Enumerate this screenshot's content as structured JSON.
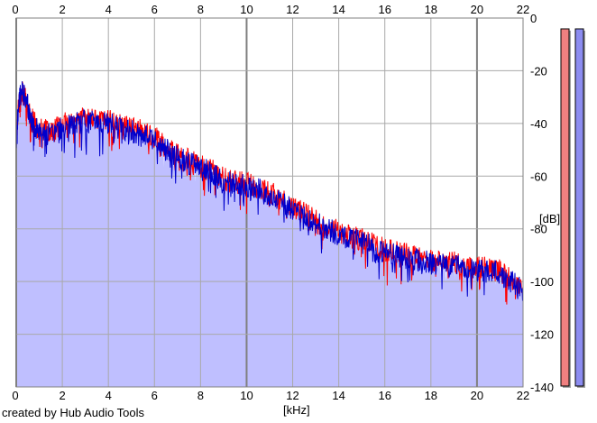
{
  "footer": {
    "credit": "created by Hub Audio Tools"
  },
  "chart_data": {
    "type": "area",
    "title": "",
    "xlabel": "[kHz]",
    "ylabel": "[dB]",
    "xlim": [
      0,
      22
    ],
    "ylim": [
      -140,
      0
    ],
    "x_ticks": [
      0,
      2,
      4,
      6,
      8,
      10,
      12,
      14,
      16,
      18,
      20,
      22
    ],
    "x_tick_labels": [
      "0",
      "2",
      "4",
      "6",
      "8",
      "10",
      "12",
      "14",
      "16",
      "18",
      "20",
      "22"
    ],
    "y_ticks": [
      0,
      -20,
      -40,
      -60,
      -80,
      -100,
      -120,
      -140
    ],
    "y_tick_labels": [
      "0",
      "-20",
      "-40",
      "-60",
      "-80",
      "-100",
      "-120",
      "-140"
    ],
    "grid": true,
    "series": [
      {
        "color": "#ff0000",
        "x": [
          0,
          0.1,
          0.25,
          0.4,
          0.6,
          0.8,
          1,
          1.5,
          2,
          2.5,
          3,
          3.5,
          4,
          4.5,
          5,
          5.5,
          6,
          6.5,
          7,
          7.5,
          8,
          8.5,
          9,
          9.5,
          10,
          10.5,
          11,
          11.5,
          12,
          12.5,
          13,
          13.5,
          14,
          14.5,
          15,
          15.5,
          16,
          16.5,
          17,
          17.5,
          18,
          18.5,
          19,
          19.5,
          20,
          20.5,
          21,
          21.5,
          22
        ],
        "y": [
          -45,
          -33,
          -28,
          -30,
          -37,
          -40,
          -42,
          -43,
          -40,
          -39,
          -38,
          -38,
          -39,
          -41,
          -42,
          -43,
          -45,
          -49,
          -52,
          -54,
          -56,
          -58,
          -61,
          -62,
          -63,
          -64,
          -66,
          -69,
          -72,
          -74,
          -77,
          -79,
          -81,
          -83,
          -84,
          -86,
          -88,
          -89,
          -90,
          -91,
          -92,
          -93,
          -93,
          -94,
          -95,
          -95,
          -96,
          -99,
          -102
        ]
      },
      {
        "color": "#0000cc",
        "x": [
          0,
          0.1,
          0.25,
          0.4,
          0.6,
          0.8,
          1,
          1.5,
          2,
          2.5,
          3,
          3.5,
          4,
          4.5,
          5,
          5.5,
          6,
          6.5,
          7,
          7.5,
          8,
          8.5,
          9,
          9.5,
          10,
          10.5,
          11,
          11.5,
          12,
          12.5,
          13,
          13.5,
          14,
          14.5,
          15,
          15.5,
          16,
          16.5,
          17,
          17.5,
          18,
          18.5,
          19,
          19.5,
          20,
          20.5,
          21,
          21.5,
          22
        ],
        "y": [
          -47,
          -32,
          -27,
          -29,
          -38,
          -41,
          -43,
          -44,
          -41,
          -40,
          -39,
          -39,
          -40,
          -42,
          -43,
          -44,
          -46,
          -50,
          -53,
          -55,
          -57,
          -59,
          -62,
          -63,
          -64,
          -65,
          -67,
          -70,
          -73,
          -75,
          -78,
          -80,
          -82,
          -84,
          -85,
          -87,
          -89,
          -90,
          -91,
          -92,
          -93,
          -94,
          -94,
          -95,
          -96,
          -96,
          -97,
          -100,
          -104
        ]
      }
    ],
    "level_meters": [
      {
        "color": "#f08080",
        "level": 1.0
      },
      {
        "color": "#8c8cf0",
        "level": 1.0
      }
    ]
  },
  "colors": {
    "fill": "#bfbfff",
    "grid": "#a9a9a9",
    "grid_major": "#808080",
    "frame": "#808080"
  }
}
